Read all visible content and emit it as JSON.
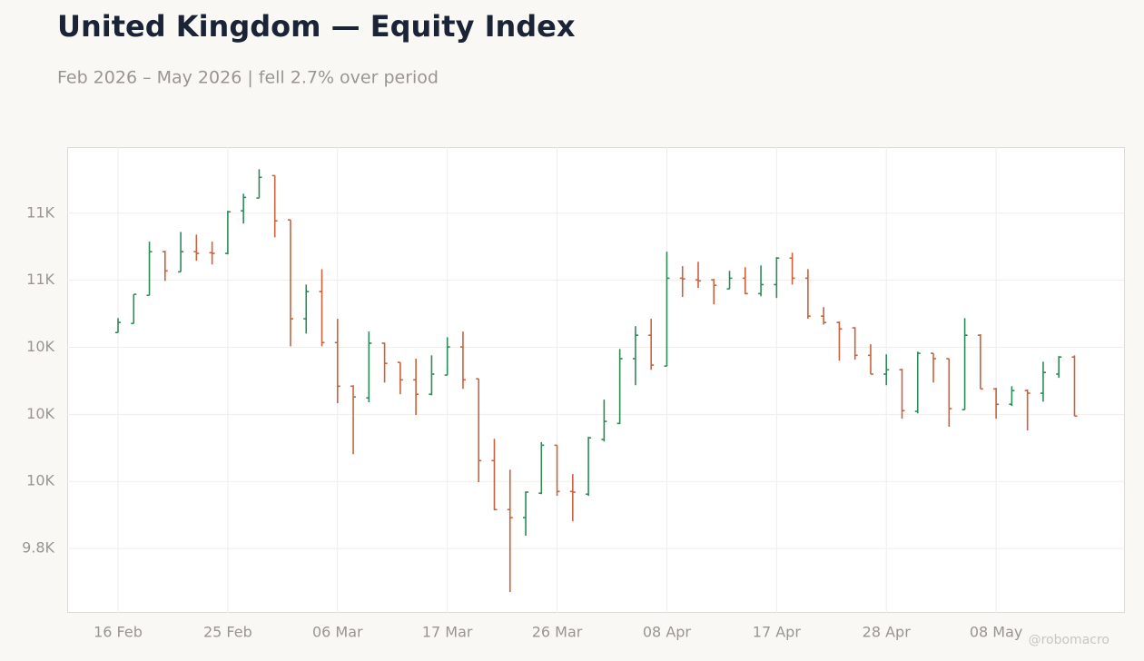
{
  "chart_data": {
    "type": "ohlc",
    "title": "United Kingdom — Equity Index",
    "subtitle": "Feb 2026 – May 2026 | fell 2.7% over period",
    "watermark": "@robomacro",
    "categories": [
      "16 Feb",
      null,
      null,
      null,
      null,
      null,
      null,
      "25 Feb",
      null,
      null,
      null,
      null,
      null,
      null,
      "06 Mar",
      null,
      null,
      null,
      null,
      null,
      null,
      "17 Mar",
      null,
      null,
      null,
      null,
      null,
      null,
      "26 Mar",
      null,
      null,
      null,
      null,
      null,
      null,
      "08 Apr",
      null,
      null,
      null,
      null,
      null,
      null,
      "17 Apr",
      null,
      null,
      null,
      null,
      null,
      null,
      "28 Apr",
      null,
      null,
      null,
      null,
      null,
      null,
      "08 May",
      null,
      null,
      null,
      null,
      null
    ],
    "up_color": "#2e8b57",
    "down_color": "#c8623f",
    "ylim": [
      9608,
      10997
    ],
    "yticks": [
      {
        "value": 9800,
        "label": "9.8K"
      },
      {
        "value": 10000,
        "label": "10K"
      },
      {
        "value": 10200,
        "label": "10K"
      },
      {
        "value": 10400,
        "label": "10K"
      },
      {
        "value": 10600,
        "label": "11K"
      },
      {
        "value": 10800,
        "label": "11K"
      }
    ],
    "grid": true,
    "open": [
      10444,
      10471,
      10555,
      10685,
      10625,
      10685,
      10682,
      10680,
      10807,
      10845,
      10912,
      10780,
      10485,
      10566,
      10414,
      10284,
      10249,
      10412,
      10355,
      10303,
      10260,
      10317,
      10401,
      10306,
      10062,
      9916,
      9892,
      9965,
      10108,
      9970,
      9962,
      10125,
      10173,
      10366,
      10436,
      10344,
      10606,
      10601,
      10601,
      10574,
      10606,
      10560,
      10587,
      10666,
      10606,
      10493,
      10474,
      10458,
      10376,
      10320,
      10333,
      10209,
      10382,
      10366,
      10214,
      10436,
      10276,
      10230,
      10271,
      10263,
      10320,
      10371
    ],
    "high": [
      10487,
      10558,
      10715,
      10688,
      10744,
      10736,
      10715,
      10807,
      10858,
      10931,
      10912,
      10780,
      10587,
      10633,
      10485,
      10287,
      10447,
      10414,
      10355,
      10366,
      10376,
      10430,
      10447,
      10306,
      10127,
      10035,
      9970,
      10117,
      10108,
      10022,
      10133,
      10244,
      10395,
      10463,
      10485,
      10685,
      10642,
      10655,
      10604,
      10628,
      10639,
      10644,
      10669,
      10682,
      10633,
      10520,
      10477,
      10460,
      10409,
      10379,
      10336,
      10387,
      10382,
      10366,
      10487,
      10439,
      10279,
      10284,
      10274,
      10357,
      10374,
      10376
    ],
    "low": [
      10444,
      10471,
      10555,
      10598,
      10625,
      10658,
      10647,
      10677,
      10769,
      10845,
      10728,
      10403,
      10441,
      10403,
      10233,
      10081,
      10236,
      10295,
      10260,
      10198,
      10257,
      10317,
      10276,
      9998,
      9914,
      9670,
      9838,
      9962,
      9957,
      9881,
      9957,
      10119,
      10171,
      10287,
      10333,
      10344,
      10550,
      10577,
      10528,
      10574,
      10558,
      10552,
      10547,
      10587,
      10485,
      10468,
      10360,
      10363,
      10320,
      10287,
      10187,
      10203,
      10295,
      10163,
      10214,
      10276,
      10187,
      10225,
      10152,
      10238,
      10309,
      10195
    ],
    "close": [
      10474,
      10558,
      10685,
      10628,
      10685,
      10680,
      10680,
      10804,
      10847,
      10907,
      10777,
      10485,
      10566,
      10414,
      10284,
      10252,
      10412,
      10352,
      10303,
      10260,
      10320,
      10401,
      10303,
      10062,
      9916,
      9892,
      9968,
      10108,
      9970,
      9968,
      10130,
      10179,
      10366,
      10436,
      10347,
      10606,
      10604,
      10598,
      10585,
      10606,
      10560,
      10587,
      10666,
      10606,
      10493,
      10474,
      10455,
      10376,
      10320,
      10333,
      10211,
      10382,
      10366,
      10217,
      10436,
      10276,
      10230,
      10271,
      10263,
      10325,
      10371,
      10195
    ]
  }
}
